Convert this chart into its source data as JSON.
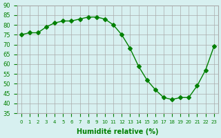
{
  "x": [
    0,
    1,
    2,
    3,
    4,
    5,
    6,
    7,
    8,
    9,
    10,
    11,
    12,
    13,
    14,
    15,
    16,
    17,
    18,
    19,
    20,
    21,
    22,
    23
  ],
  "y": [
    75,
    76,
    76,
    79,
    81,
    82,
    82,
    83,
    84,
    84,
    83,
    80,
    75,
    68,
    59,
    52,
    47,
    43,
    42,
    43,
    43,
    49,
    57,
    69
  ],
  "line_color": "#008000",
  "marker": "D",
  "marker_size": 3,
  "bg_color": "#d7f0f0",
  "grid_color": "#aaaaaa",
  "xlabel": "Humidité relative (%)",
  "xlabel_color": "#008000",
  "tick_color": "#008000",
  "ylim": [
    35,
    90
  ],
  "xlim": [
    -0.5,
    23.5
  ],
  "yticks": [
    35,
    40,
    45,
    50,
    55,
    60,
    65,
    70,
    75,
    80,
    85,
    90
  ],
  "xtick_labels": [
    "0",
    "1",
    "2",
    "3",
    "4",
    "5",
    "6",
    "7",
    "8",
    "9",
    "10",
    "11",
    "12",
    "13",
    "14",
    "15",
    "16",
    "17",
    "18",
    "19",
    "20",
    "21",
    "22",
    "23"
  ]
}
